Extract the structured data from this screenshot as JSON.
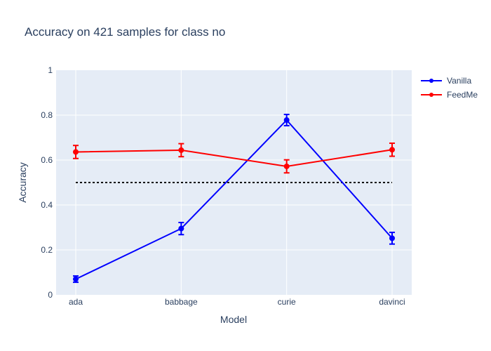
{
  "chart_data": {
    "type": "line",
    "title": "Accuracy on 421 samples for class  no",
    "xlabel": "Model",
    "ylabel": "Accuracy",
    "categories": [
      "ada",
      "babbage",
      "curie",
      "davinci"
    ],
    "ylim": [
      0,
      1
    ],
    "yticks": [
      "0",
      "0.2",
      "0.4",
      "0.6",
      "0.8",
      "1"
    ],
    "grid": true,
    "legend_position": "top-right",
    "series": [
      {
        "name": "Vanilla",
        "color": "#0000ff",
        "values": [
          0.07,
          0.295,
          0.778,
          0.252
        ],
        "error": [
          0.014,
          0.027,
          0.025,
          0.026
        ]
      },
      {
        "name": "FeedMe",
        "color": "#ff0000",
        "values": [
          0.636,
          0.644,
          0.572,
          0.646
        ],
        "error": [
          0.029,
          0.029,
          0.029,
          0.029
        ]
      }
    ],
    "reference_line": {
      "y": 0.5,
      "color": "#000000",
      "style": "dotted"
    }
  }
}
